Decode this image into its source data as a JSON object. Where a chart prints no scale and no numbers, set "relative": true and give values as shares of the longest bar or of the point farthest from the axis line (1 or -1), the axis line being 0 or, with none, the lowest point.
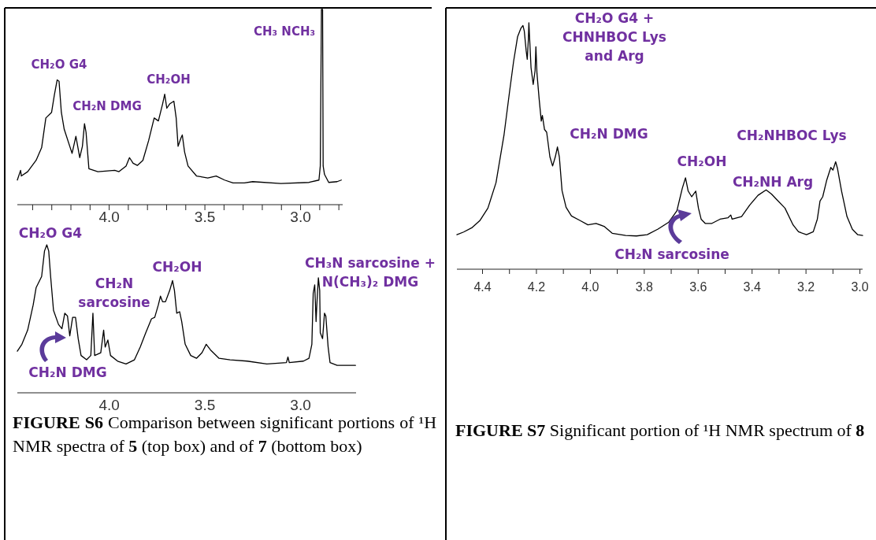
{
  "chart_data": [
    {
      "type": "line",
      "relative": true,
      "xlim": [
        4.48,
        2.78
      ],
      "xticks": [
        {
          "value": 4.4,
          "label": null
        },
        {
          "value": 4.3,
          "label": null
        },
        {
          "value": 4.2,
          "label": null
        },
        {
          "value": 4.1,
          "label": null
        },
        {
          "value": 4.0,
          "label": "4.0"
        },
        {
          "value": 3.9,
          "label": null
        },
        {
          "value": 3.8,
          "label": null
        },
        {
          "value": 3.7,
          "label": null
        },
        {
          "value": 3.6,
          "label": null
        },
        {
          "value": 3.5,
          "label": "3.5"
        },
        {
          "value": 3.4,
          "label": null
        },
        {
          "value": 3.3,
          "label": null
        },
        {
          "value": 3.2,
          "label": null
        },
        {
          "value": 3.1,
          "label": null
        },
        {
          "value": 3.0,
          "label": "3.0"
        },
        {
          "value": 2.9,
          "label": null
        },
        {
          "value": 2.8,
          "label": null
        }
      ],
      "series": [
        {
          "color": "#000000",
          "x": [
            4.48,
            4.463,
            4.459,
            4.426,
            4.382,
            4.353,
            4.331,
            4.301,
            4.287,
            4.272,
            4.262,
            4.25,
            4.235,
            4.206,
            4.194,
            4.174,
            4.154,
            4.14,
            4.129,
            4.121,
            4.106,
            4.059,
            3.971,
            3.949,
            3.912,
            3.894,
            3.875,
            3.853,
            3.824,
            3.794,
            3.765,
            3.743,
            3.721,
            3.71,
            3.699,
            3.684,
            3.662,
            3.65,
            3.64,
            3.625,
            3.618,
            3.606,
            3.588,
            3.544,
            3.485,
            3.441,
            3.397,
            3.353,
            3.294,
            3.25,
            3.103,
            2.956,
            2.904,
            2.897,
            2.891,
            2.885,
            2.882,
            2.875,
            2.853,
            2.809,
            2.787
          ],
          "values": [
            0.126,
            0.176,
            0.147,
            0.169,
            0.227,
            0.292,
            0.444,
            0.473,
            0.559,
            0.639,
            0.632,
            0.473,
            0.386,
            0.299,
            0.263,
            0.35,
            0.241,
            0.299,
            0.415,
            0.371,
            0.184,
            0.169,
            0.176,
            0.169,
            0.198,
            0.241,
            0.212,
            0.201,
            0.227,
            0.328,
            0.444,
            0.429,
            0.516,
            0.566,
            0.494,
            0.516,
            0.53,
            0.444,
            0.299,
            0.342,
            0.357,
            0.27,
            0.198,
            0.147,
            0.137,
            0.147,
            0.126,
            0.111,
            0.111,
            0.118,
            0.108,
            0.114,
            0.126,
            0.198,
            1.0,
            1.0,
            0.198,
            0.155,
            0.114,
            0.118,
            0.126
          ]
        }
      ],
      "annotations": [
        "CH₂O G4",
        "CH₂N DMG",
        "CH₂OH",
        "CH₃ NCH₃"
      ]
    },
    {
      "type": "line",
      "relative": true,
      "xlim": [
        4.48,
        2.71
      ],
      "xticks": [
        {
          "value": 4.0,
          "label": "4.0"
        },
        {
          "value": 3.5,
          "label": "3.5"
        },
        {
          "value": 3.0,
          "label": "3.0"
        }
      ],
      "series": [
        {
          "color": "#000000",
          "x": [
            4.48,
            4.456,
            4.426,
            4.397,
            4.382,
            4.353,
            4.338,
            4.326,
            4.316,
            4.306,
            4.291,
            4.265,
            4.247,
            4.232,
            4.218,
            4.206,
            4.191,
            4.176,
            4.162,
            4.147,
            4.118,
            4.096,
            4.085,
            4.076,
            4.044,
            4.029,
            4.021,
            4.007,
            3.993,
            3.956,
            3.912,
            3.868,
            3.838,
            3.809,
            3.779,
            3.762,
            3.743,
            3.732,
            3.721,
            3.706,
            3.684,
            3.669,
            3.659,
            3.647,
            3.632,
            3.621,
            3.603,
            3.574,
            3.544,
            3.515,
            3.493,
            3.471,
            3.426,
            3.368,
            3.279,
            3.176,
            3.074,
            3.066,
            3.059,
            2.985,
            2.956,
            2.941,
            2.934,
            2.926,
            2.919,
            2.915,
            2.907,
            2.9,
            2.897,
            2.885,
            2.875,
            2.868,
            2.856,
            2.846,
            2.809,
            2.713
          ],
          "values": [
            0.281,
            0.328,
            0.424,
            0.595,
            0.71,
            0.786,
            0.958,
            1.0,
            0.958,
            0.786,
            0.557,
            0.462,
            0.433,
            0.538,
            0.519,
            0.385,
            0.51,
            0.51,
            0.366,
            0.252,
            0.223,
            0.252,
            0.538,
            0.252,
            0.271,
            0.424,
            0.309,
            0.357,
            0.252,
            0.214,
            0.195,
            0.223,
            0.309,
            0.405,
            0.5,
            0.51,
            0.595,
            0.653,
            0.615,
            0.615,
            0.691,
            0.758,
            0.691,
            0.538,
            0.548,
            0.481,
            0.328,
            0.252,
            0.233,
            0.271,
            0.328,
            0.29,
            0.233,
            0.223,
            0.214,
            0.195,
            0.204,
            0.242,
            0.204,
            0.214,
            0.233,
            0.328,
            0.672,
            0.729,
            0.481,
            0.595,
            0.777,
            0.691,
            0.405,
            0.366,
            0.538,
            0.519,
            0.309,
            0.204,
            0.185,
            0.185
          ]
        }
      ],
      "annotations": [
        "CH₂O G4",
        "CH₂N\nsarcosine",
        "CH₂OH",
        "CH₃N sarcosine +\nN(CH₃)₂ DMG",
        "CH₂N DMG",
        "FIGURE S6 Comparison between significant portions of ¹H NMR spectra of 5 (top box) and of 7 (bottom box)"
      ]
    },
    {
      "type": "line",
      "relative": true,
      "xlim": [
        4.495,
        2.99
      ],
      "xticks": [
        {
          "value": 4.4,
          "label": "4.4"
        },
        {
          "value": 4.3,
          "label": null
        },
        {
          "value": 4.2,
          "label": "4.2"
        },
        {
          "value": 4.1,
          "label": null
        },
        {
          "value": 4.0,
          "label": "4.0"
        },
        {
          "value": 3.9,
          "label": null
        },
        {
          "value": 3.8,
          "label": "3.8"
        },
        {
          "value": 3.7,
          "label": null
        },
        {
          "value": 3.6,
          "label": "3.6"
        },
        {
          "value": 3.5,
          "label": null
        },
        {
          "value": 3.4,
          "label": "3.4"
        },
        {
          "value": 3.3,
          "label": null
        },
        {
          "value": 3.2,
          "label": "3.2"
        },
        {
          "value": 3.1,
          "label": null
        },
        {
          "value": 3.0,
          "label": "3.0"
        }
      ],
      "series": [
        {
          "color": "#000000",
          "x": [
            4.495,
            4.47,
            4.44,
            4.41,
            4.38,
            4.35,
            4.32,
            4.3,
            4.285,
            4.27,
            4.258,
            4.25,
            4.245,
            4.238,
            4.234,
            4.23,
            4.228,
            4.225,
            4.22,
            4.212,
            4.205,
            4.202,
            4.198,
            4.19,
            4.182,
            4.178,
            4.17,
            4.162,
            4.15,
            4.14,
            4.13,
            4.122,
            4.115,
            4.105,
            4.09,
            4.07,
            4.039,
            4.009,
            3.979,
            3.949,
            3.919,
            3.869,
            3.829,
            3.789,
            3.749,
            3.709,
            3.679,
            3.659,
            3.647,
            3.637,
            3.624,
            3.609,
            3.599,
            3.589,
            3.574,
            3.549,
            3.519,
            3.489,
            3.479,
            3.474,
            3.439,
            3.409,
            3.378,
            3.348,
            3.328,
            3.308,
            3.278,
            3.248,
            3.228,
            3.198,
            3.173,
            3.158,
            3.148,
            3.138,
            3.123,
            3.108,
            3.1,
            3.09,
            3.083,
            3.068,
            3.048,
            3.028,
            3.008,
            2.99
          ],
          "values": [
            0.14,
            0.151,
            0.168,
            0.197,
            0.248,
            0.351,
            0.547,
            0.718,
            0.841,
            0.943,
            0.977,
            0.989,
            0.966,
            0.886,
            0.852,
            0.932,
            1.0,
            0.932,
            0.818,
            0.75,
            0.806,
            0.903,
            0.795,
            0.692,
            0.601,
            0.624,
            0.567,
            0.556,
            0.456,
            0.419,
            0.456,
            0.496,
            0.456,
            0.319,
            0.251,
            0.216,
            0.198,
            0.18,
            0.186,
            0.174,
            0.146,
            0.137,
            0.135,
            0.14,
            0.163,
            0.191,
            0.237,
            0.328,
            0.371,
            0.317,
            0.294,
            0.317,
            0.248,
            0.203,
            0.186,
            0.186,
            0.203,
            0.209,
            0.22,
            0.203,
            0.214,
            0.26,
            0.3,
            0.322,
            0.305,
            0.282,
            0.248,
            0.18,
            0.152,
            0.14,
            0.152,
            0.203,
            0.277,
            0.294,
            0.362,
            0.413,
            0.402,
            0.436,
            0.408,
            0.317,
            0.214,
            0.162,
            0.14,
            0.137
          ]
        }
      ],
      "annotations": [
        "CH₂O G4 +\nCHNHBOC Lys\nand Arg",
        "CH₂N DMG",
        "CH₂NHBOC Lys",
        "CH₂OH",
        "CH₂NH Arg",
        "CH₂N sarcosine",
        "FIGURE S7 Significant portion of ¹H NMR spectrum of 8"
      ]
    }
  ]
}
